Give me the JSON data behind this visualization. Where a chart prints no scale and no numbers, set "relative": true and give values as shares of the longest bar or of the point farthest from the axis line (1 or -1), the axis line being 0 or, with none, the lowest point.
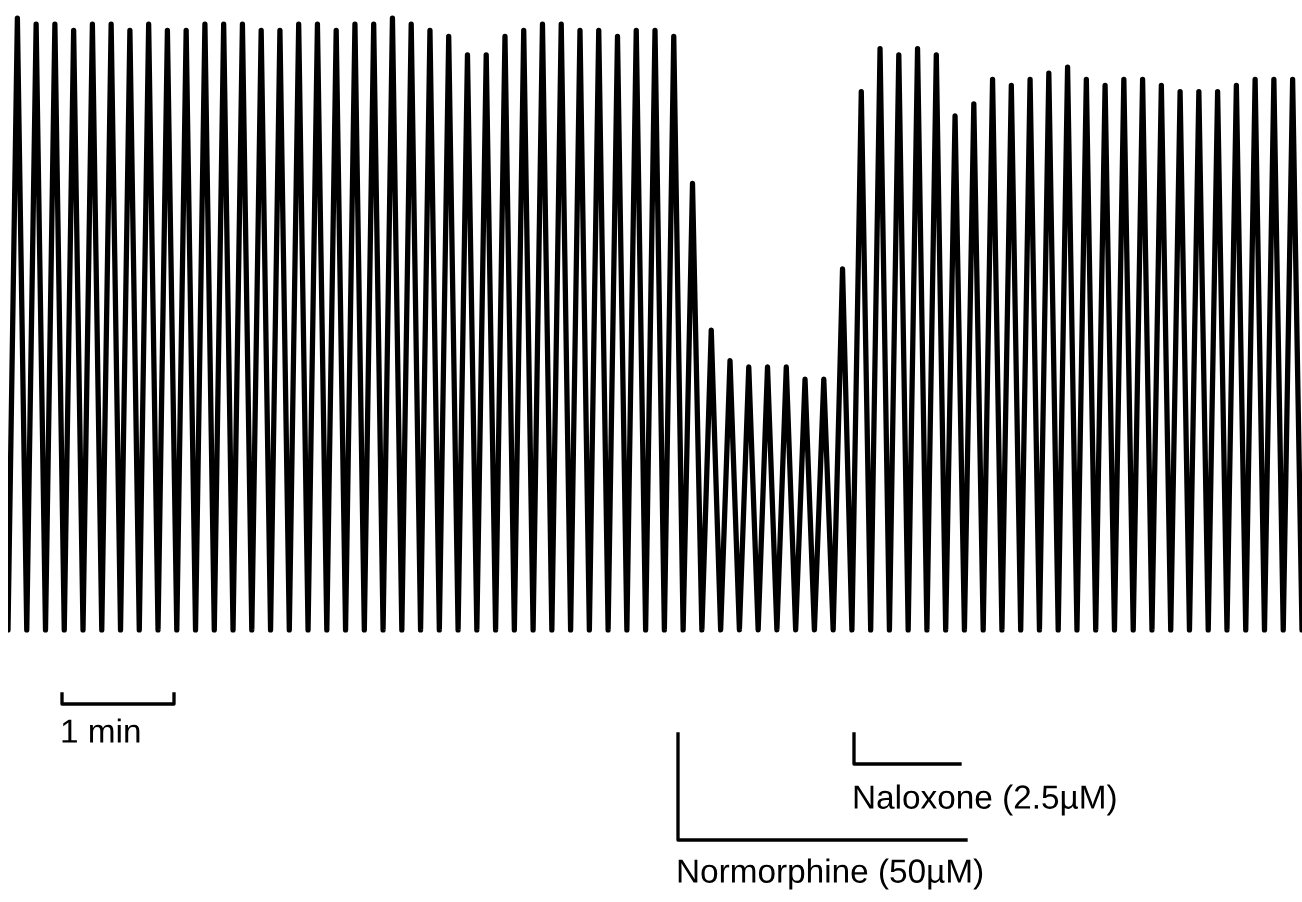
{
  "chart_data": {
    "type": "line",
    "relative": true,
    "marker": "none",
    "line_style": "solid",
    "categories": [
      null,
      null,
      null,
      null,
      null,
      null,
      null,
      null,
      null,
      null,
      null,
      null,
      null,
      null,
      null,
      null,
      null,
      null,
      null,
      null,
      null,
      null,
      null,
      null,
      null,
      null,
      null,
      null,
      null,
      null,
      null,
      null,
      null,
      null,
      null,
      null,
      null,
      null,
      null,
      null,
      null,
      null,
      null,
      null,
      null,
      null,
      null,
      null,
      null,
      null,
      null,
      null,
      null,
      null,
      null,
      null,
      null,
      null,
      null,
      null,
      null,
      null,
      null,
      null,
      null,
      null,
      null,
      null,
      null,
      null,
      null,
      null,
      null,
      null,
      null,
      null,
      null,
      null,
      null,
      null,
      null,
      null,
      null,
      null,
      null,
      null,
      null,
      null,
      null,
      null,
      null,
      null,
      null,
      null,
      null,
      null,
      null,
      null,
      null,
      null,
      null,
      null,
      null,
      null,
      null,
      null,
      null,
      null,
      null,
      null,
      null,
      null,
      null,
      null,
      null,
      null,
      null,
      null,
      null,
      null,
      null,
      null,
      null,
      null,
      null,
      null,
      null,
      null,
      null,
      null,
      null,
      null,
      null,
      null,
      null,
      null,
      null,
      null,
      null
    ],
    "series": [
      {
        "color": "#000000",
        "values": [
          0,
          1.0,
          0,
          0.99,
          0,
          0.99,
          0,
          0.98,
          0,
          0.99,
          0,
          0.99,
          0,
          0.98,
          0,
          0.99,
          0,
          0.98,
          0,
          0.98,
          0,
          0.99,
          0,
          0.99,
          0,
          0.99,
          0,
          0.98,
          0,
          0.98,
          0,
          0.99,
          0,
          0.99,
          0,
          0.98,
          0,
          0.99,
          0,
          0.99,
          0,
          1.0,
          0,
          0.99,
          0,
          0.98,
          0,
          0.97,
          0,
          0.94,
          0,
          0.94,
          0,
          0.97,
          0,
          0.98,
          0,
          0.99,
          0,
          0.99,
          0,
          0.98,
          0,
          0.98,
          0,
          0.97,
          0,
          0.98,
          0,
          0.98,
          0,
          0.97,
          0,
          0.73,
          0,
          0.49,
          0,
          0.44,
          0,
          0.43,
          0,
          0.43,
          0,
          0.43,
          0,
          0.41,
          0,
          0.41,
          0,
          0.59,
          0,
          0.88,
          0,
          0.95,
          0,
          0.94,
          0,
          0.95,
          0,
          0.94,
          0,
          0.84,
          0,
          0.86,
          0,
          0.9,
          0,
          0.89,
          0,
          0.9,
          0,
          0.91,
          0,
          0.92,
          0,
          0.9,
          0,
          0.89,
          0,
          0.9,
          0,
          0.9,
          0,
          0.89,
          0,
          0.88,
          0,
          0.88,
          0,
          0.88,
          0,
          0.89,
          0,
          0.9,
          0,
          0.9,
          0,
          0.9,
          0
        ]
      }
    ],
    "annotations": [
      "1 min",
      "Naloxone (2.5µM)",
      "Normorphine (50µM)"
    ]
  }
}
